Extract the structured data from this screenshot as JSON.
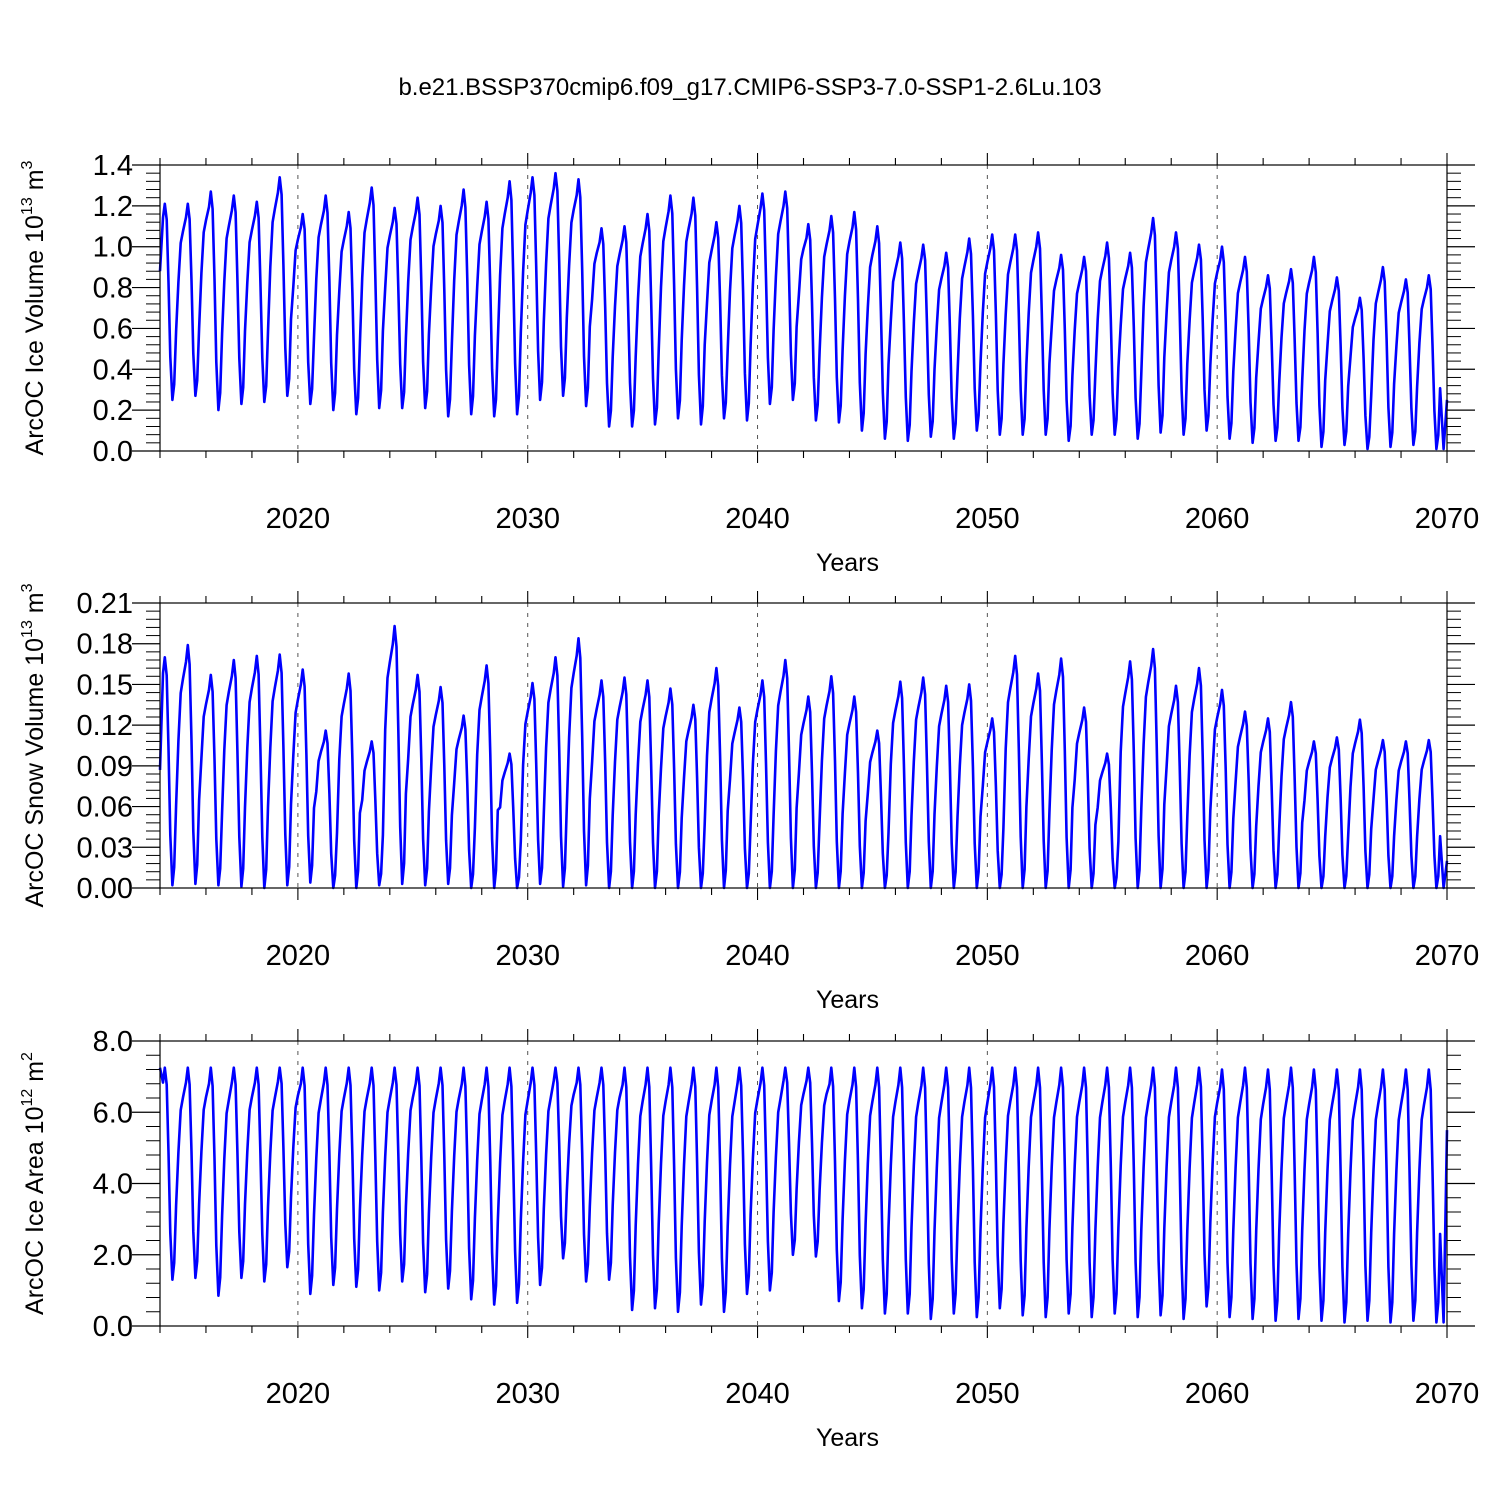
{
  "figure_title": "b.e21.BSSP370cmip6.f09_g17.CMIP6-SSP3-7.0-SSP1-2.6Lu.103",
  "colors": {
    "series": "#0000ff",
    "axes": "#000000"
  },
  "chart_data": [
    {
      "type": "line",
      "name": "ice-volume",
      "title": "b.e21.BSSP370cmip6.f09_g17.CMIP6-SSP3-7.0-SSP1-2.6Lu.103",
      "xlabel": "Years",
      "ylabel_prefix": "ArcOC Ice Volume 10",
      "ylabel_exp": "13",
      "ylabel_unit": " m",
      "ylabel_unit_exp": "3",
      "xlim": [
        2014,
        2070
      ],
      "ylim": [
        0,
        1.4
      ],
      "yticks": [
        "0.0",
        "0.2",
        "0.4",
        "0.6",
        "0.8",
        "1.0",
        "1.2",
        "1.4"
      ],
      "xticks": [
        "2020",
        "2030",
        "2040",
        "2050",
        "2060",
        "2070"
      ],
      "grid_x": [
        2020,
        2030,
        2040,
        2050,
        2060
      ],
      "start_value": 0.88,
      "end_value": 0.25,
      "annual_max": [
        1.21,
        1.21,
        1.27,
        1.25,
        1.22,
        1.34,
        1.16,
        1.25,
        1.17,
        1.29,
        1.19,
        1.24,
        1.2,
        1.28,
        1.22,
        1.32,
        1.34,
        1.36,
        1.33,
        1.09,
        1.1,
        1.16,
        1.25,
        1.24,
        1.12,
        1.2,
        1.26,
        1.27,
        1.11,
        1.15,
        1.17,
        1.1,
        1.02,
        1.01,
        0.97,
        1.04,
        1.06,
        1.06,
        1.07,
        0.96,
        0.95,
        1.02,
        0.97,
        1.14,
        1.07,
        1.01,
        1.0,
        0.95,
        0.86,
        0.89,
        0.95,
        0.85,
        0.75,
        0.9,
        0.84,
        0.86
      ],
      "annual_min": [
        0.25,
        0.27,
        0.2,
        0.23,
        0.24,
        0.27,
        0.23,
        0.2,
        0.18,
        0.21,
        0.21,
        0.21,
        0.17,
        0.18,
        0.17,
        0.18,
        0.25,
        0.27,
        0.22,
        0.12,
        0.12,
        0.13,
        0.16,
        0.13,
        0.16,
        0.15,
        0.23,
        0.25,
        0.15,
        0.14,
        0.1,
        0.06,
        0.05,
        0.07,
        0.06,
        0.1,
        0.08,
        0.08,
        0.08,
        0.05,
        0.08,
        0.08,
        0.06,
        0.09,
        0.08,
        0.1,
        0.06,
        0.04,
        0.05,
        0.05,
        0.02,
        0.03,
        0.01,
        0.02,
        0.03,
        0.01
      ]
    },
    {
      "type": "line",
      "name": "snow-volume",
      "title": "",
      "xlabel": "Years",
      "ylabel_prefix": "ArcOC Snow Volume 10",
      "ylabel_exp": "13",
      "ylabel_unit": " m",
      "ylabel_unit_exp": "3",
      "xlim": [
        2014,
        2070
      ],
      "ylim": [
        0,
        0.21
      ],
      "yticks": [
        "0.00",
        "0.03",
        "0.06",
        "0.09",
        "0.12",
        "0.15",
        "0.18",
        "0.21"
      ],
      "xticks": [
        "2020",
        "2030",
        "2040",
        "2050",
        "2060",
        "2070"
      ],
      "grid_x": [
        2020,
        2030,
        2040,
        2050,
        2060
      ],
      "start_value": 0.087,
      "end_value": 0.02,
      "annual_max": [
        0.17,
        0.179,
        0.157,
        0.168,
        0.171,
        0.172,
        0.161,
        0.116,
        0.158,
        0.108,
        0.193,
        0.157,
        0.148,
        0.127,
        0.164,
        0.099,
        0.151,
        0.17,
        0.184,
        0.153,
        0.155,
        0.153,
        0.147,
        0.135,
        0.162,
        0.133,
        0.153,
        0.168,
        0.141,
        0.156,
        0.141,
        0.116,
        0.152,
        0.155,
        0.149,
        0.15,
        0.125,
        0.171,
        0.158,
        0.169,
        0.133,
        0.099,
        0.167,
        0.176,
        0.149,
        0.162,
        0.146,
        0.13,
        0.125,
        0.137,
        0.108,
        0.111,
        0.124,
        0.109,
        0.108,
        0.109
      ],
      "annual_min": [
        0.002,
        0.003,
        0.002,
        0.001,
        0.0,
        0.002,
        0.004,
        0.0,
        0.0,
        0.002,
        0.003,
        0.002,
        0.003,
        0.0,
        0.0,
        0.0,
        0.003,
        0.001,
        0.002,
        0.0,
        0.0,
        0.0,
        0.0,
        0.0,
        0.0,
        0.0,
        0.0,
        0.0,
        0.0,
        0.0,
        0.0,
        0.0,
        0.0,
        0.0,
        0.0,
        0.0,
        0.0,
        0.0,
        0.0,
        0.0,
        0.0,
        0.0,
        0.0,
        0.0,
        0.0,
        0.0,
        0.0,
        0.0,
        0.0,
        0.0,
        0.0,
        0.0,
        0.0,
        0.0,
        0.0,
        0.0
      ]
    },
    {
      "type": "line",
      "name": "ice-area",
      "title": "",
      "xlabel": "Years",
      "ylabel_prefix": "ArcOC Ice Area 10",
      "ylabel_exp": "12",
      "ylabel_unit": " m",
      "ylabel_unit_exp": "2",
      "xlim": [
        2014,
        2070
      ],
      "ylim": [
        0,
        8
      ],
      "yticks": [
        "0.0",
        "2.0",
        "4.0",
        "6.0",
        "8.0"
      ],
      "xticks": [
        "2020",
        "2030",
        "2040",
        "2050",
        "2060",
        "2070"
      ],
      "grid_x": [
        2020,
        2030,
        2040,
        2050,
        2060
      ],
      "start_value": 7.25,
      "end_value": 5.5,
      "annual_max": [
        7.25,
        7.25,
        7.25,
        7.25,
        7.25,
        7.25,
        7.25,
        7.25,
        7.25,
        7.25,
        7.25,
        7.25,
        7.25,
        7.25,
        7.25,
        7.25,
        7.25,
        7.25,
        7.25,
        7.25,
        7.25,
        7.25,
        7.25,
        7.25,
        7.25,
        7.25,
        7.25,
        7.25,
        7.25,
        7.25,
        7.25,
        7.25,
        7.25,
        7.25,
        7.25,
        7.25,
        7.25,
        7.25,
        7.25,
        7.25,
        7.25,
        7.25,
        7.25,
        7.25,
        7.25,
        7.25,
        7.2,
        7.25,
        7.2,
        7.25,
        7.2,
        7.2,
        7.2,
        7.2,
        7.2,
        7.2
      ],
      "annual_min": [
        1.3,
        1.35,
        0.85,
        1.35,
        1.25,
        1.65,
        0.9,
        1.15,
        1.1,
        1.0,
        1.25,
        0.95,
        1.05,
        0.75,
        0.6,
        0.65,
        1.15,
        1.9,
        1.25,
        1.3,
        0.45,
        0.5,
        0.4,
        0.6,
        0.4,
        0.9,
        1.0,
        2.0,
        1.95,
        0.7,
        0.5,
        0.35,
        0.35,
        0.2,
        0.35,
        0.25,
        0.5,
        0.3,
        0.25,
        0.35,
        0.25,
        0.35,
        0.25,
        0.3,
        0.2,
        0.55,
        0.25,
        0.2,
        0.15,
        0.2,
        0.15,
        0.1,
        0.15,
        0.1,
        0.15,
        0.1
      ]
    }
  ]
}
